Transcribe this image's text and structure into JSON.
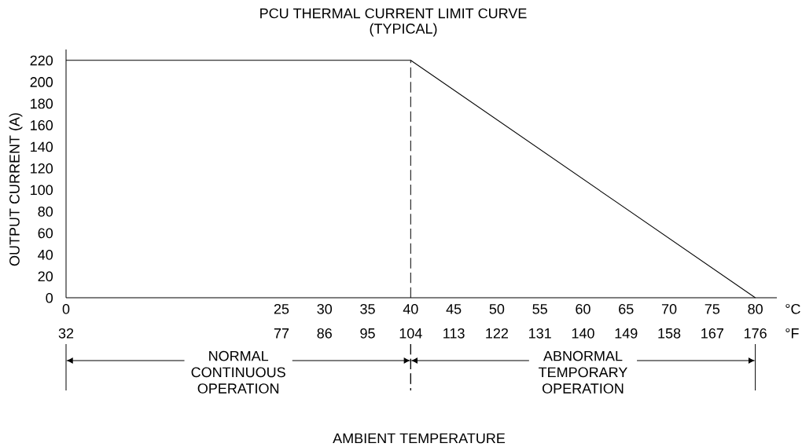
{
  "chart_data": {
    "type": "line",
    "title": "PCU THERMAL CURRENT LIMIT CURVE",
    "subtitle": "(TYPICAL)",
    "xlabel": "°C",
    "x2label": "°F",
    "ylabel": "OUTPUT CURRENT (A)",
    "x": [
      0,
      40,
      80
    ],
    "values": [
      220,
      220,
      0
    ],
    "color": "#000000",
    "line_style": "solid",
    "xlim": [
      0,
      82.5
    ],
    "xticks": [
      0,
      25,
      30,
      35,
      40,
      45,
      50,
      55,
      60,
      65,
      70,
      75,
      80
    ],
    "x2lim": [
      32,
      180.5
    ],
    "x2ticks": [
      32,
      77,
      86,
      95,
      104,
      113,
      122,
      131,
      140,
      149,
      158,
      167,
      176
    ],
    "ylim": [
      0,
      230
    ],
    "yticks": [
      0,
      20,
      40,
      60,
      80,
      100,
      120,
      140,
      160,
      180,
      200,
      220
    ],
    "ref_lines": [
      {
        "axis": "x",
        "value": 40,
        "line_style": "dashed",
        "color": "#000000"
      }
    ],
    "annotations": [
      "NORMAL CONTINUOUS OPERATION",
      "ABNORMAL TEMPORARY OPERATION",
      "AMBIENT TEMPERATURE"
    ]
  }
}
